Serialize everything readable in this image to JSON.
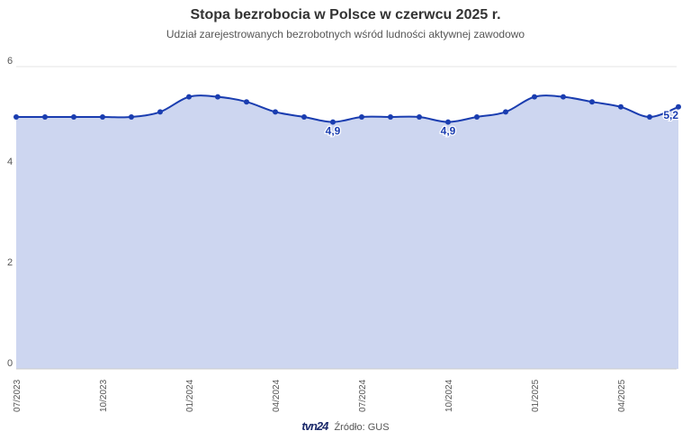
{
  "chart_data": {
    "type": "area",
    "title": "Stopa bezrobocia w Polsce w czerwcu 2025 r.",
    "subtitle": "Udział zarejestrowanych bezrobotnych wśród ludności aktywnej zawodowo",
    "x": [
      "07/2023",
      "08/2023",
      "09/2023",
      "10/2023",
      "11/2023",
      "12/2023",
      "01/2024",
      "02/2024",
      "03/2024",
      "04/2024",
      "05/2024",
      "06/2024",
      "07/2024",
      "08/2024",
      "09/2024",
      "10/2024",
      "11/2024",
      "12/2024",
      "01/2025",
      "02/2025",
      "03/2025",
      "04/2025",
      "05/2025",
      "06/2025"
    ],
    "values": [
      5.0,
      5.0,
      5.0,
      5.0,
      5.0,
      5.1,
      5.4,
      5.4,
      5.3,
      5.1,
      5.0,
      4.9,
      5.0,
      5.0,
      5.0,
      4.9,
      5.0,
      5.1,
      5.4,
      5.4,
      5.3,
      5.2,
      5.0,
      5.2
    ],
    "x_tick_labels": [
      "07/2023",
      "10/2023",
      "01/2024",
      "04/2024",
      "07/2024",
      "10/2024",
      "01/2025",
      "04/2025"
    ],
    "y_ticks": [
      "0",
      "2",
      "4",
      "6"
    ],
    "ylim": [
      0,
      6
    ],
    "grid": true,
    "data_labels": [
      {
        "index": 11,
        "text": "4,9"
      },
      {
        "index": 15,
        "text": "4,9"
      },
      {
        "index": 23,
        "text": "5,2"
      }
    ],
    "colors": {
      "line": "#1a3db0",
      "fill": "#cdd6f0",
      "grid": "#e6e6e6"
    }
  },
  "footer": {
    "logo": "tvn24",
    "source": "Źródło: GUS"
  }
}
